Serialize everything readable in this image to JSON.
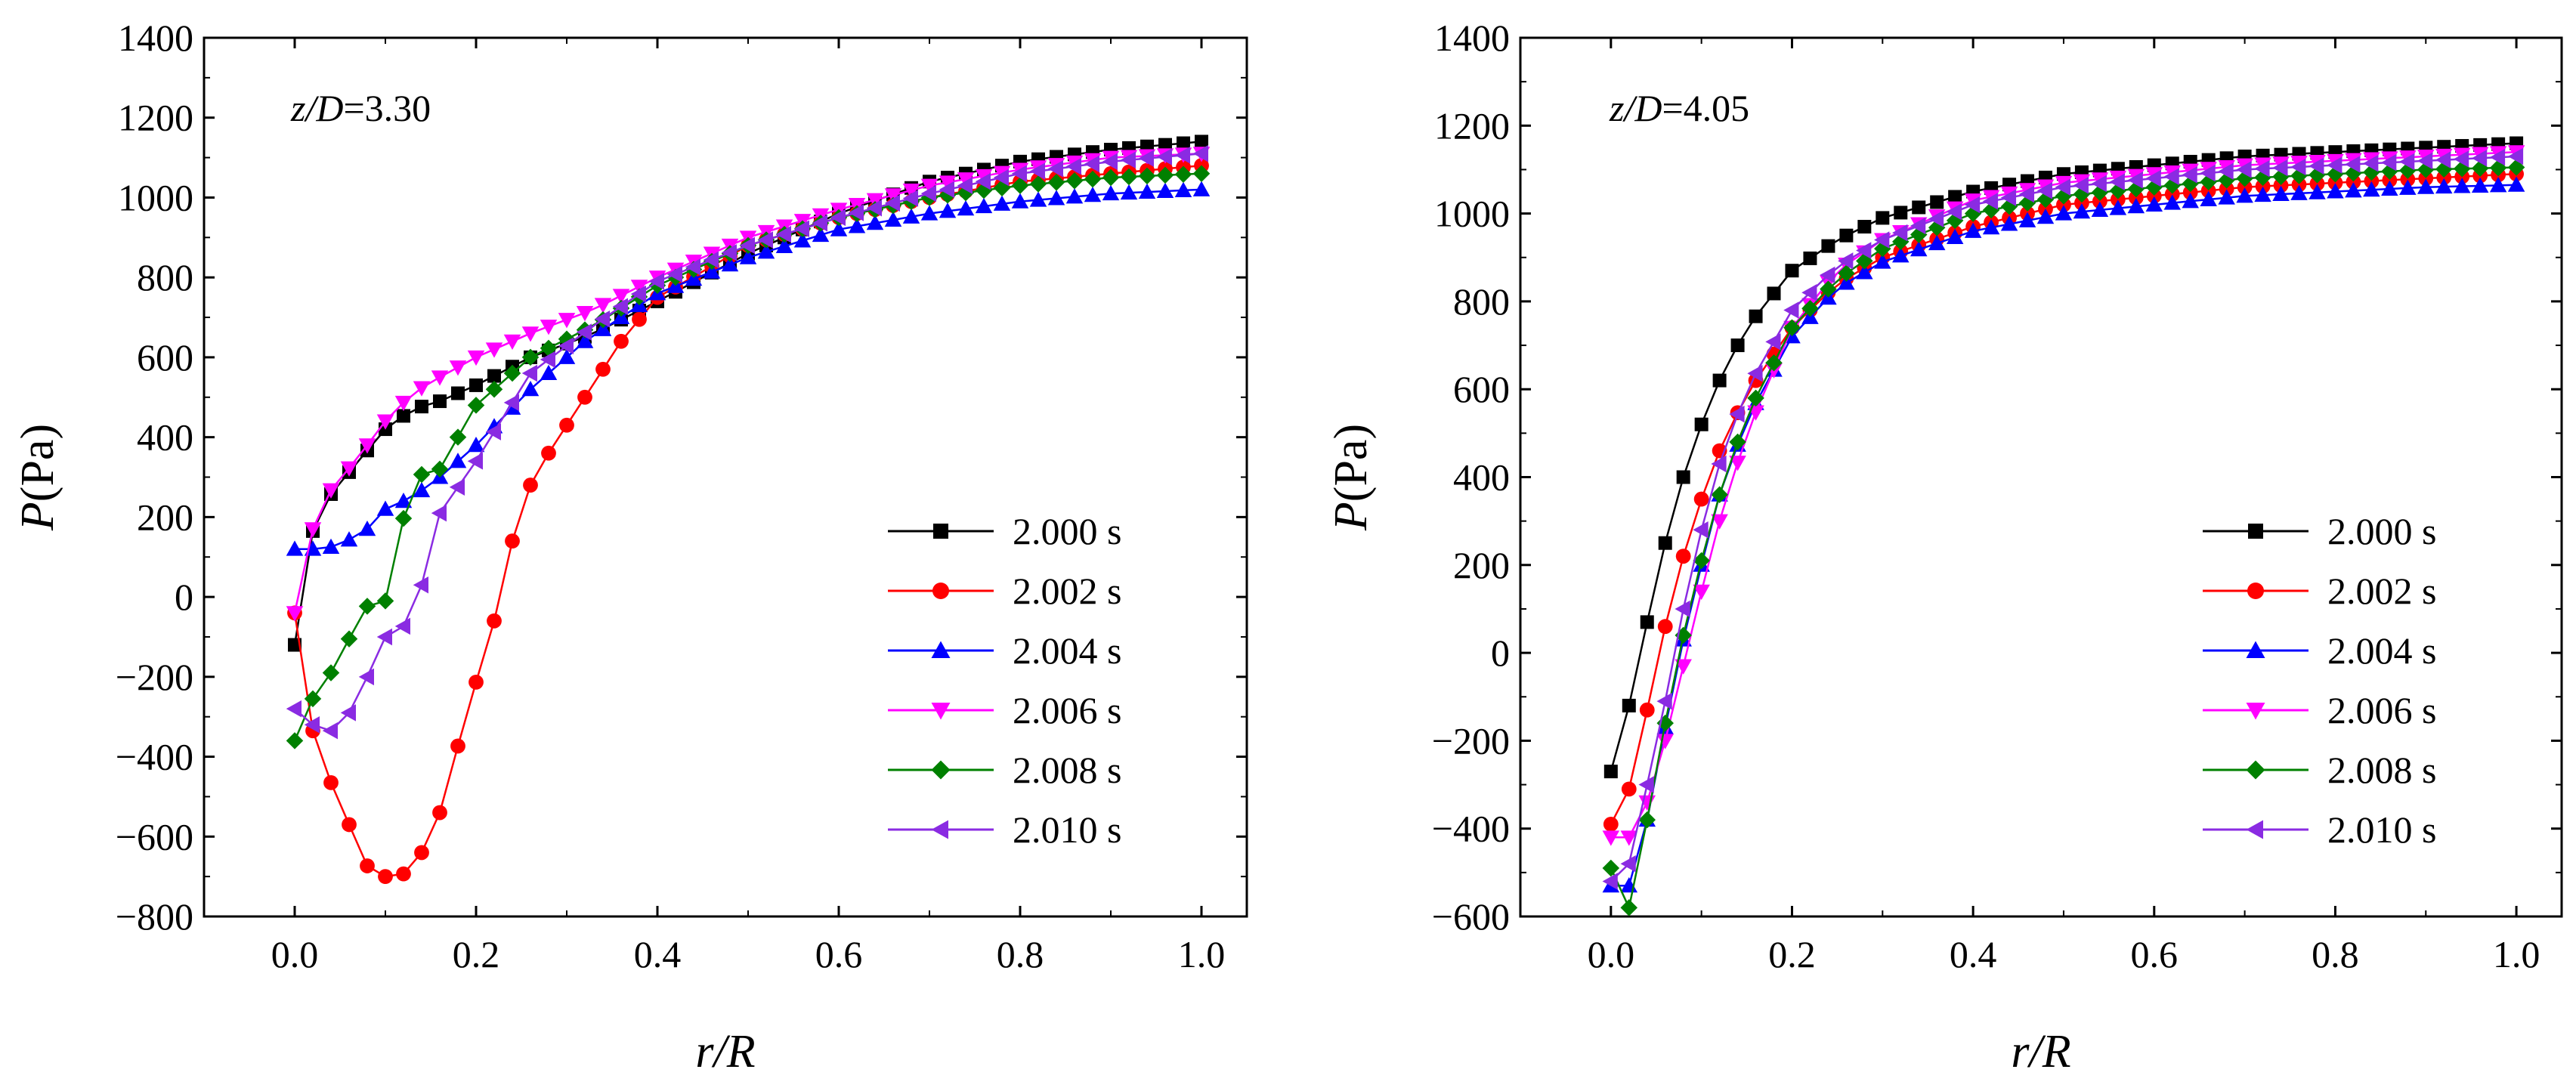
{
  "chart_data": [
    {
      "type": "line",
      "title": "",
      "annotation_var": "z/D",
      "annotation_value": "=3.30",
      "xlabel_var": "r/R",
      "ylabel_var": "P",
      "ylabel_unit": "(Pa)",
      "xlim": [
        -0.1,
        1.05
      ],
      "ylim": [
        -800,
        1400
      ],
      "xticks": [
        0.0,
        0.2,
        0.4,
        0.6,
        0.8,
        1.0
      ],
      "xtick_labels": [
        "0.0",
        "0.2",
        "0.4",
        "0.6",
        "0.8",
        "1.0"
      ],
      "yticks": [
        -800,
        -600,
        -400,
        -200,
        0,
        200,
        400,
        600,
        800,
        1000,
        1200,
        1400
      ],
      "ytick_labels": [
        "−800",
        "−600",
        "−400",
        "−200",
        "0",
        "200",
        "400",
        "600",
        "800",
        "1000",
        "1200",
        "1400"
      ],
      "legend_position": "bottom-right",
      "series": [
        {
          "name": "2.000 s",
          "color": "#000000",
          "marker": "square",
          "anchors_r": [
            0,
            0.01,
            0.03,
            0.07,
            0.1,
            0.13,
            0.16,
            0.2,
            0.26,
            0.33,
            0.4,
            0.5,
            0.6,
            0.7,
            0.8,
            0.9,
            1.0
          ],
          "anchors_p": [
            -120,
            100,
            230,
            340,
            420,
            470,
            490,
            530,
            600,
            660,
            740,
            860,
            960,
            1040,
            1090,
            1120,
            1140
          ]
        },
        {
          "name": "2.002 s",
          "color": "#ff0000",
          "marker": "circle",
          "anchors_r": [
            0,
            0.005,
            0.01,
            0.03,
            0.05,
            0.07,
            0.1,
            0.13,
            0.16,
            0.19,
            0.22,
            0.25,
            0.28,
            0.32,
            0.36,
            0.4,
            0.5,
            0.6,
            0.7,
            0.8,
            0.9,
            1.0
          ],
          "anchors_p": [
            -40,
            -200,
            -220,
            -450,
            -480,
            -660,
            -700,
            -690,
            -540,
            -290,
            -60,
            240,
            360,
            500,
            640,
            750,
            880,
            950,
            1000,
            1040,
            1060,
            1080
          ]
        },
        {
          "name": "2.004 s",
          "color": "#0000ff",
          "marker": "triangle-up",
          "anchors_r": [
            0,
            0.03,
            0.05,
            0.08,
            0.1,
            0.13,
            0.16,
            0.2,
            0.26,
            0.32,
            0.4,
            0.5,
            0.6,
            0.7,
            0.8,
            0.9,
            1.0
          ],
          "anchors_p": [
            120,
            120,
            130,
            170,
            220,
            250,
            300,
            380,
            520,
            640,
            760,
            850,
            920,
            960,
            990,
            1010,
            1020
          ]
        },
        {
          "name": "2.006 s",
          "color": "#ff00ff",
          "marker": "triangle-down",
          "anchors_r": [
            0,
            0.01,
            0.03,
            0.07,
            0.1,
            0.13,
            0.16,
            0.2,
            0.26,
            0.33,
            0.4,
            0.5,
            0.6,
            0.7,
            0.8,
            0.9,
            1.0
          ],
          "anchors_p": [
            -40,
            100,
            240,
            350,
            440,
            510,
            550,
            600,
            660,
            720,
            800,
            900,
            970,
            1030,
            1070,
            1100,
            1110
          ]
        },
        {
          "name": "2.008 s",
          "color": "#008000",
          "marker": "diamond",
          "anchors_r": [
            0,
            0.01,
            0.03,
            0.05,
            0.07,
            0.1,
            0.13,
            0.16,
            0.2,
            0.26,
            0.33,
            0.4,
            0.5,
            0.6,
            0.7,
            0.8,
            0.9,
            1.0
          ],
          "anchors_p": [
            -360,
            -310,
            -200,
            -180,
            -30,
            -10,
            300,
            320,
            480,
            600,
            680,
            780,
            880,
            950,
            1000,
            1030,
            1050,
            1060
          ]
        },
        {
          "name": "2.010 s",
          "color": "#8a2be2",
          "marker": "triangle-left",
          "anchors_r": [
            0,
            0.03,
            0.05,
            0.07,
            0.1,
            0.13,
            0.16,
            0.2,
            0.26,
            0.33,
            0.4,
            0.5,
            0.6,
            0.7,
            0.8,
            0.9,
            1.0
          ],
          "anchors_p": [
            -280,
            -340,
            -330,
            -250,
            -100,
            -60,
            210,
            340,
            560,
            680,
            790,
            880,
            950,
            1010,
            1060,
            1090,
            1110
          ]
        }
      ]
    },
    {
      "type": "line",
      "title": "",
      "annotation_var": "z/D",
      "annotation_value": "=4.05",
      "xlabel_var": "r/R",
      "ylabel_var": "P",
      "ylabel_unit": "(Pa)",
      "xlim": [
        -0.1,
        1.05
      ],
      "ylim": [
        -600,
        1400
      ],
      "xticks": [
        0.0,
        0.2,
        0.4,
        0.6,
        0.8,
        1.0
      ],
      "xtick_labels": [
        "0.0",
        "0.2",
        "0.4",
        "0.6",
        "0.8",
        "1.0"
      ],
      "yticks": [
        -600,
        -400,
        -200,
        0,
        200,
        400,
        600,
        800,
        1000,
        1200,
        1400
      ],
      "ytick_labels": [
        "−600",
        "−400",
        "−200",
        "0",
        "200",
        "400",
        "600",
        "800",
        "1000",
        "1200",
        "1400"
      ],
      "legend_position": "bottom-right",
      "series": [
        {
          "name": "2.000 s",
          "color": "#000000",
          "marker": "square",
          "anchors_r": [
            0,
            0.02,
            0.04,
            0.06,
            0.08,
            0.1,
            0.12,
            0.15,
            0.2,
            0.25,
            0.3,
            0.4,
            0.5,
            0.6,
            0.7,
            0.8,
            0.9,
            1.0
          ],
          "anchors_p": [
            -270,
            -120,
            70,
            250,
            400,
            520,
            620,
            740,
            870,
            940,
            990,
            1050,
            1090,
            1110,
            1130,
            1140,
            1150,
            1160
          ]
        },
        {
          "name": "2.002 s",
          "color": "#ff0000",
          "marker": "circle",
          "anchors_r": [
            0,
            0.02,
            0.04,
            0.06,
            0.08,
            0.1,
            0.12,
            0.15,
            0.2,
            0.25,
            0.3,
            0.4,
            0.5,
            0.6,
            0.7,
            0.8,
            0.9,
            1.0
          ],
          "anchors_p": [
            -390,
            -310,
            -130,
            60,
            220,
            350,
            460,
            590,
            740,
            840,
            900,
            970,
            1020,
            1040,
            1060,
            1070,
            1080,
            1090
          ]
        },
        {
          "name": "2.004 s",
          "color": "#0000ff",
          "marker": "triangle-up",
          "anchors_r": [
            0,
            0.02,
            0.04,
            0.06,
            0.08,
            0.1,
            0.12,
            0.15,
            0.2,
            0.25,
            0.3,
            0.4,
            0.5,
            0.6,
            0.7,
            0.8,
            0.9,
            1.0
          ],
          "anchors_p": [
            -530,
            -530,
            -380,
            -170,
            30,
            200,
            360,
            530,
            720,
            830,
            890,
            960,
            1000,
            1020,
            1040,
            1050,
            1060,
            1065
          ]
        },
        {
          "name": "2.006 s",
          "color": "#ff00ff",
          "marker": "triangle-down",
          "anchors_r": [
            0,
            0.02,
            0.04,
            0.06,
            0.08,
            0.1,
            0.12,
            0.15,
            0.2,
            0.25,
            0.3,
            0.4,
            0.5,
            0.6,
            0.7,
            0.8,
            0.9,
            1.0
          ],
          "anchors_p": [
            -420,
            -420,
            -340,
            -200,
            -30,
            140,
            300,
            500,
            740,
            870,
            940,
            1030,
            1070,
            1090,
            1110,
            1120,
            1130,
            1140
          ]
        },
        {
          "name": "2.008 s",
          "color": "#008000",
          "marker": "diamond",
          "anchors_r": [
            0,
            0.02,
            0.04,
            0.06,
            0.08,
            0.1,
            0.12,
            0.15,
            0.2,
            0.25,
            0.3,
            0.4,
            0.5,
            0.6,
            0.7,
            0.8,
            0.9,
            1.0
          ],
          "anchors_p": [
            -490,
            -580,
            -380,
            -160,
            40,
            210,
            360,
            540,
            740,
            850,
            920,
            1000,
            1040,
            1060,
            1080,
            1090,
            1100,
            1105
          ]
        },
        {
          "name": "2.010 s",
          "color": "#8a2be2",
          "marker": "triangle-left",
          "anchors_r": [
            0,
            0.02,
            0.04,
            0.06,
            0.08,
            0.1,
            0.12,
            0.15,
            0.2,
            0.25,
            0.3,
            0.4,
            0.5,
            0.6,
            0.7,
            0.8,
            0.9,
            1.0
          ],
          "anchors_p": [
            -520,
            -480,
            -300,
            -110,
            100,
            280,
            430,
            600,
            780,
            880,
            940,
            1020,
            1060,
            1080,
            1100,
            1110,
            1120,
            1130
          ]
        }
      ]
    }
  ]
}
